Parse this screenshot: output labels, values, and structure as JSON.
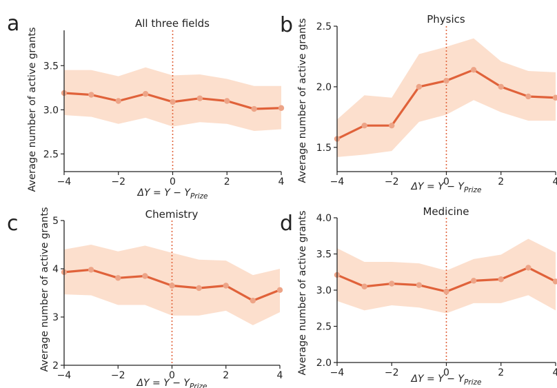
{
  "chart_data": [
    {
      "type": "line",
      "panel_label": "a",
      "title": "All three fields",
      "xlabel": "ΔY = Y − Y",
      "xlabel_sub": "Prize",
      "ylabel": "Average number of active grants",
      "x": [
        -4,
        -3,
        -2,
        -1,
        0,
        1,
        2,
        3,
        4
      ],
      "xlim": [
        -4,
        4
      ],
      "ylim": [
        2.3,
        3.9
      ],
      "xticks": [
        -4,
        -2,
        0,
        2,
        4
      ],
      "xtick_labels": [
        "−4",
        "−2",
        "0",
        "2",
        "4"
      ],
      "yticks": [
        2.5,
        3.0,
        3.5
      ],
      "ytick_labels": [
        "2.5",
        "3.0",
        "3.5"
      ],
      "series": [
        {
          "values": [
            3.19,
            3.17,
            3.1,
            3.18,
            3.09,
            3.13,
            3.1,
            3.01,
            3.02
          ],
          "lower": [
            2.94,
            2.92,
            2.84,
            2.91,
            2.81,
            2.86,
            2.84,
            2.76,
            2.78
          ],
          "upper": [
            3.45,
            3.45,
            3.38,
            3.48,
            3.39,
            3.4,
            3.35,
            3.27,
            3.27
          ]
        }
      ],
      "reference_line_x": 0
    },
    {
      "type": "line",
      "panel_label": "b",
      "title": "Physics",
      "xlabel": "ΔY = Y − Y",
      "xlabel_sub": "Prize",
      "ylabel": "Average number of active grants",
      "x": [
        -4,
        -3,
        -2,
        -1,
        0,
        1,
        2,
        3,
        4
      ],
      "xlim": [
        -4,
        4
      ],
      "ylim": [
        1.3,
        2.5
      ],
      "xticks": [
        -4,
        -2,
        0,
        2,
        4
      ],
      "xtick_labels": [
        "−4",
        "−2",
        "0",
        "2",
        "4"
      ],
      "yticks": [
        1.5,
        2.0,
        2.5
      ],
      "ytick_labels": [
        "1.5",
        "2.0",
        "2.5"
      ],
      "series": [
        {
          "values": [
            1.57,
            1.68,
            1.68,
            2.0,
            2.05,
            2.14,
            2.0,
            1.92,
            1.91
          ],
          "lower": [
            1.42,
            1.44,
            1.47,
            1.71,
            1.77,
            1.89,
            1.79,
            1.72,
            1.72
          ],
          "upper": [
            1.73,
            1.93,
            1.91,
            2.27,
            2.33,
            2.4,
            2.21,
            2.13,
            2.12
          ]
        }
      ],
      "reference_line_x": 0
    },
    {
      "type": "line",
      "panel_label": "c",
      "title": "Chemistry",
      "xlabel": "ΔY = Y − Y",
      "xlabel_sub": "Prize",
      "ylabel": "Average number of active grants",
      "x": [
        -4,
        -3,
        -2,
        -1,
        0,
        1,
        2,
        3,
        4
      ],
      "xlim": [
        -4,
        4
      ],
      "ylim": [
        2,
        5
      ],
      "xticks": [
        -4,
        -2,
        0,
        2,
        4
      ],
      "xtick_labels": [
        "−4",
        "−2",
        "0",
        "2",
        "4"
      ],
      "yticks": [
        2,
        3,
        4,
        5
      ],
      "ytick_labels": [
        "2",
        "3",
        "4",
        "5"
      ],
      "series": [
        {
          "values": [
            3.93,
            3.98,
            3.81,
            3.85,
            3.65,
            3.6,
            3.65,
            3.34,
            3.56
          ],
          "lower": [
            3.47,
            3.45,
            3.25,
            3.25,
            3.03,
            3.03,
            3.13,
            2.83,
            3.1
          ],
          "upper": [
            4.4,
            4.5,
            4.36,
            4.48,
            4.33,
            4.19,
            4.17,
            3.87,
            4.0
          ]
        }
      ],
      "reference_line_x": 0
    },
    {
      "type": "line",
      "panel_label": "d",
      "title": "Medicine",
      "xlabel": "ΔY = Y − Y",
      "xlabel_sub": "Prize",
      "ylabel": "Average number of active grants",
      "x": [
        -4,
        -3,
        -2,
        -1,
        0,
        1,
        2,
        3,
        4
      ],
      "xlim": [
        -4,
        4
      ],
      "ylim": [
        2.0,
        4.0
      ],
      "xticks": [
        -4,
        -2,
        0,
        2,
        4
      ],
      "xtick_labels": [
        "−4",
        "−2",
        "0",
        "2",
        "4"
      ],
      "yticks": [
        2.0,
        2.5,
        3.0,
        3.5,
        4.0
      ],
      "ytick_labels": [
        "2.0",
        "2.5",
        "3.0",
        "3.5",
        "4.0"
      ],
      "series": [
        {
          "values": [
            3.21,
            3.05,
            3.09,
            3.07,
            2.98,
            3.13,
            3.15,
            3.31,
            3.12
          ],
          "lower": [
            2.85,
            2.72,
            2.79,
            2.76,
            2.68,
            2.82,
            2.82,
            2.93,
            2.72
          ],
          "upper": [
            3.58,
            3.39,
            3.39,
            3.37,
            3.27,
            3.43,
            3.49,
            3.71,
            3.52
          ]
        }
      ],
      "reference_line_x": 0
    }
  ],
  "colors": {
    "line": "#e0623a",
    "band": "#fbd9c4",
    "marker": "#eda487",
    "reference_line": "#e0623a",
    "axes": "#222222"
  }
}
